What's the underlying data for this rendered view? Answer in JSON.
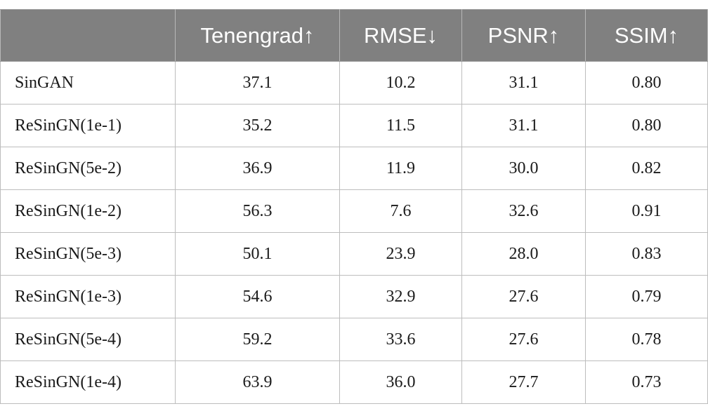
{
  "table": {
    "headers": [
      "",
      "Tenengrad↑",
      "RMSE↓",
      "PSNR↑",
      "SSIM↑"
    ],
    "rows": [
      [
        "SinGAN",
        "37.1",
        "10.2",
        "31.1",
        "0.80"
      ],
      [
        "ReSinGN(1e-1)",
        "35.2",
        "11.5",
        "31.1",
        "0.80"
      ],
      [
        "ReSinGN(5e-2)",
        "36.9",
        "11.9",
        "30.0",
        "0.82"
      ],
      [
        "ReSinGN(1e-2)",
        "56.3",
        "7.6",
        "32.6",
        "0.91"
      ],
      [
        "ReSinGN(5e-3)",
        "50.1",
        "23.9",
        "28.0",
        "0.83"
      ],
      [
        "ReSinGN(1e-3)",
        "54.6",
        "32.9",
        "27.6",
        "0.79"
      ],
      [
        "ReSinGN(5e-4)",
        "59.2",
        "33.6",
        "27.6",
        "0.78"
      ],
      [
        "ReSinGN(1e-4)",
        "63.9",
        "36.0",
        "27.7",
        "0.73"
      ]
    ]
  }
}
